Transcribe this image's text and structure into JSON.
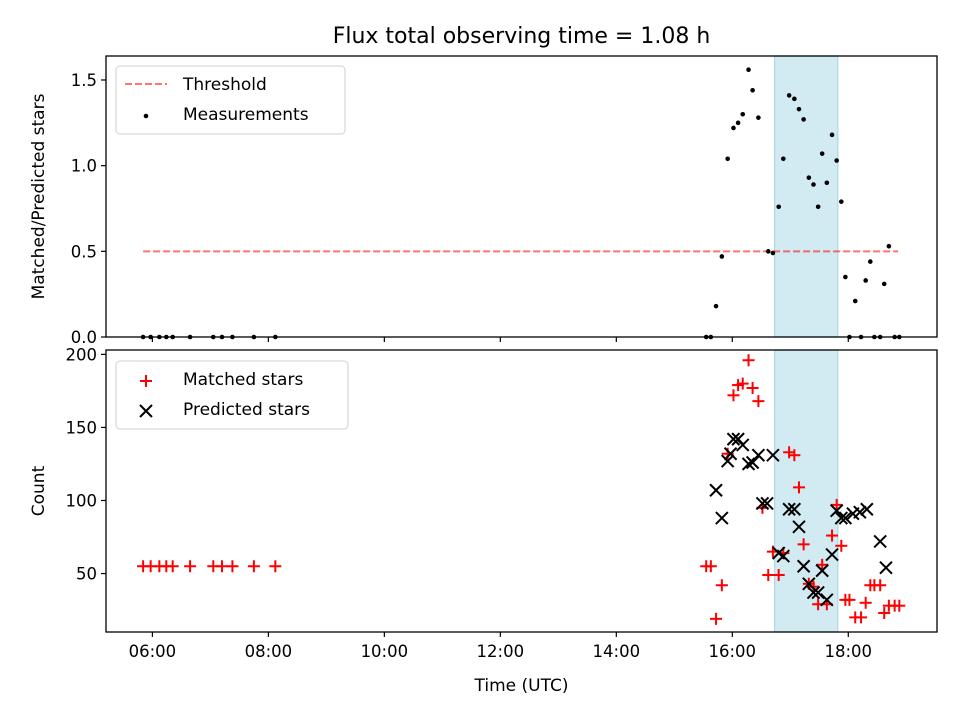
{
  "chart_data": {
    "type": "scatter",
    "title": "Flux total observing time = 1.08 h",
    "xlabel": "Time (UTC)",
    "xlim": [
      5.2,
      19.53
    ],
    "x_ticks": [
      6,
      8,
      10,
      12,
      14,
      16,
      18
    ],
    "x_tick_labels": [
      "06:00",
      "08:00",
      "10:00",
      "12:00",
      "14:00",
      "16:00",
      "18:00"
    ],
    "shaded_span": {
      "x_start": 16.73,
      "x_end": 17.82,
      "color": "#add8e6"
    },
    "top": {
      "ylabel": "Matched/Predicted stars",
      "ylim": [
        0,
        1.64
      ],
      "y_ticks": [
        0.0,
        0.5,
        1.0,
        1.5
      ],
      "y_tick_labels": [
        "0.0",
        "0.5",
        "1.0",
        "1.5"
      ],
      "legend_position": "upper-left",
      "threshold": {
        "name": "Threshold",
        "value": 0.5,
        "x_start": 5.84,
        "x_end": 18.86,
        "color": "#ff0000"
      },
      "series": [
        {
          "name": "Measurements",
          "color": "#000000",
          "points": [
            [
              5.84,
              0.0
            ],
            [
              5.97,
              0.0
            ],
            [
              6.12,
              0.0
            ],
            [
              6.24,
              0.0
            ],
            [
              6.35,
              0.0
            ],
            [
              6.65,
              0.0
            ],
            [
              7.05,
              0.0
            ],
            [
              7.2,
              0.0
            ],
            [
              7.38,
              0.0
            ],
            [
              7.75,
              0.0
            ],
            [
              8.12,
              0.0
            ],
            [
              15.55,
              0.0
            ],
            [
              15.63,
              0.0
            ],
            [
              15.72,
              0.18
            ],
            [
              15.82,
              0.47
            ],
            [
              15.92,
              1.04
            ],
            [
              16.02,
              1.22
            ],
            [
              16.1,
              1.25
            ],
            [
              16.18,
              1.3
            ],
            [
              16.28,
              1.56
            ],
            [
              16.35,
              1.44
            ],
            [
              16.45,
              1.28
            ],
            [
              16.62,
              0.5
            ],
            [
              16.7,
              0.49
            ],
            [
              16.8,
              0.76
            ],
            [
              16.88,
              1.04
            ],
            [
              16.98,
              1.41
            ],
            [
              17.07,
              1.39
            ],
            [
              17.15,
              1.33
            ],
            [
              17.23,
              1.27
            ],
            [
              17.32,
              0.93
            ],
            [
              17.4,
              0.89
            ],
            [
              17.48,
              0.76
            ],
            [
              17.55,
              1.07
            ],
            [
              17.63,
              0.9
            ],
            [
              17.72,
              1.18
            ],
            [
              17.8,
              1.03
            ],
            [
              17.88,
              0.79
            ],
            [
              17.95,
              0.35
            ],
            [
              18.02,
              0.0
            ],
            [
              18.12,
              0.21
            ],
            [
              18.22,
              0.0
            ],
            [
              18.3,
              0.33
            ],
            [
              18.38,
              0.44
            ],
            [
              18.45,
              0.0
            ],
            [
              18.55,
              0.0
            ],
            [
              18.62,
              0.31
            ],
            [
              18.7,
              0.53
            ],
            [
              18.8,
              0.0
            ],
            [
              18.88,
              0.0
            ]
          ]
        }
      ]
    },
    "bottom": {
      "ylabel": "Count",
      "ylim": [
        10,
        203
      ],
      "y_ticks": [
        50,
        100,
        150,
        200
      ],
      "y_tick_labels": [
        "50",
        "100",
        "150",
        "200"
      ],
      "legend_position": "upper-left",
      "series": [
        {
          "name": "Matched stars",
          "marker": "plus",
          "color": "#ff0000",
          "points": [
            [
              5.84,
              55
            ],
            [
              5.97,
              55
            ],
            [
              6.12,
              55
            ],
            [
              6.24,
              55
            ],
            [
              6.35,
              55
            ],
            [
              6.65,
              55
            ],
            [
              7.05,
              55
            ],
            [
              7.2,
              55
            ],
            [
              7.38,
              55
            ],
            [
              7.75,
              55
            ],
            [
              8.12,
              55
            ],
            [
              15.55,
              55
            ],
            [
              15.63,
              55
            ],
            [
              15.72,
              19
            ],
            [
              15.82,
              42
            ],
            [
              15.92,
              132
            ],
            [
              16.02,
              172
            ],
            [
              16.1,
              179
            ],
            [
              16.18,
              180
            ],
            [
              16.28,
              196
            ],
            [
              16.35,
              177
            ],
            [
              16.45,
              168
            ],
            [
              16.52,
              95
            ],
            [
              16.62,
              49
            ],
            [
              16.7,
              65
            ],
            [
              16.8,
              49
            ],
            [
              16.88,
              64
            ],
            [
              16.98,
              133
            ],
            [
              17.07,
              131
            ],
            [
              17.15,
              109
            ],
            [
              17.23,
              70
            ],
            [
              17.32,
              43
            ],
            [
              17.4,
              41
            ],
            [
              17.48,
              29
            ],
            [
              17.55,
              56
            ],
            [
              17.63,
              29
            ],
            [
              17.72,
              76
            ],
            [
              17.8,
              97
            ],
            [
              17.88,
              69
            ],
            [
              17.95,
              32
            ],
            [
              18.02,
              32
            ],
            [
              18.12,
              20
            ],
            [
              18.22,
              20
            ],
            [
              18.3,
              30
            ],
            [
              18.38,
              42
            ],
            [
              18.45,
              42
            ],
            [
              18.55,
              42
            ],
            [
              18.62,
              23
            ],
            [
              18.7,
              28
            ],
            [
              18.8,
              28
            ],
            [
              18.88,
              28
            ]
          ]
        },
        {
          "name": "Predicted stars",
          "marker": "x",
          "color": "#000000",
          "points": [
            [
              15.72,
              107
            ],
            [
              15.82,
              88
            ],
            [
              15.92,
              127
            ],
            [
              15.97,
              132
            ],
            [
              16.02,
              142
            ],
            [
              16.1,
              142
            ],
            [
              16.18,
              138
            ],
            [
              16.28,
              125
            ],
            [
              16.35,
              126
            ],
            [
              16.45,
              131
            ],
            [
              16.52,
              98
            ],
            [
              16.6,
              98
            ],
            [
              16.7,
              131
            ],
            [
              16.8,
              64
            ],
            [
              16.88,
              62
            ],
            [
              16.98,
              94
            ],
            [
              17.07,
              94
            ],
            [
              17.15,
              82
            ],
            [
              17.23,
              55
            ],
            [
              17.32,
              43
            ],
            [
              17.4,
              37
            ],
            [
              17.48,
              37
            ],
            [
              17.55,
              52
            ],
            [
              17.63,
              32
            ],
            [
              17.72,
              63
            ],
            [
              17.8,
              93
            ],
            [
              17.88,
              88
            ],
            [
              17.95,
              88
            ],
            [
              18.08,
              91
            ],
            [
              18.2,
              92
            ],
            [
              18.32,
              94
            ],
            [
              18.55,
              72
            ],
            [
              18.65,
              54
            ]
          ]
        }
      ]
    }
  }
}
